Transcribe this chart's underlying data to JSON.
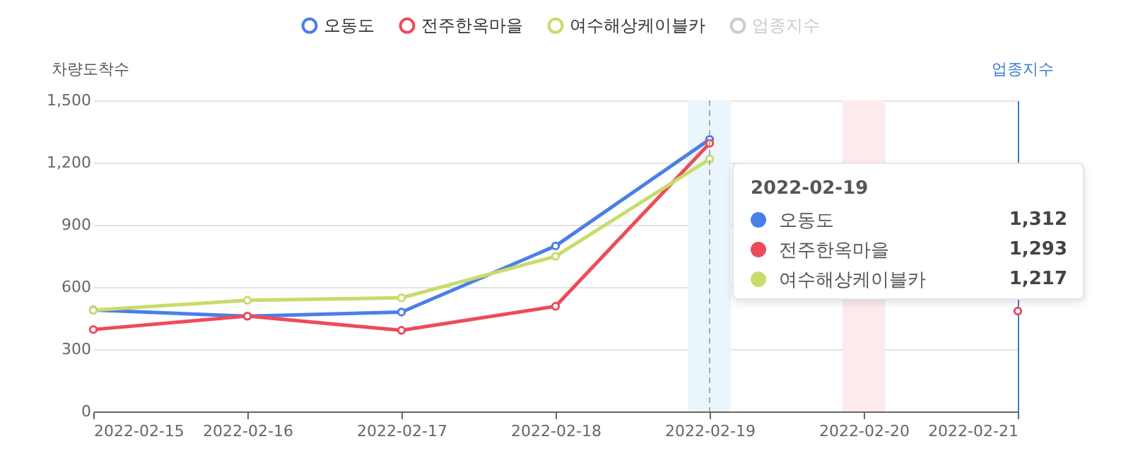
{
  "chart_data": {
    "type": "line",
    "ylabel": "차량도착수",
    "y2label": "업종지수",
    "x": [
      "2022-02-15",
      "2022-02-16",
      "2022-02-17",
      "2022-02-18",
      "2022-02-19",
      "2022-02-20",
      "2022-02-21"
    ],
    "series": [
      {
        "name": "오동도",
        "color": "#4a7fe8",
        "values": [
          489,
          459,
          479,
          798,
          1312,
          null,
          null
        ]
      },
      {
        "name": "전주한옥마을",
        "color": "#ee4b5a",
        "values": [
          395,
          460,
          391,
          507,
          1293,
          null,
          484
        ]
      },
      {
        "name": "여수해상케이블카",
        "color": "#c8dc6a",
        "values": [
          488,
          536,
          548,
          748,
          1217,
          null,
          null
        ]
      },
      {
        "name": "업종지수",
        "color": "#cccccc",
        "axis": "y2",
        "values": [
          null,
          null,
          null,
          null,
          null,
          null,
          null
        ]
      }
    ],
    "xlim": [
      "2022-02-15",
      "2022-02-21"
    ],
    "xticks": [
      "2022-02-15",
      "2022-02-16",
      "2022-02-17",
      "2022-02-18",
      "2022-02-19",
      "2022-02-20",
      "2022-02-21"
    ],
    "ylim": [
      0,
      1500
    ],
    "yticks": [
      0,
      300,
      600,
      900,
      {
        "value": 1200,
        "label": "1,200"
      },
      {
        "value": 1500,
        "label": "1,500"
      }
    ],
    "bands": [
      {
        "axis": "x",
        "from": "2022-02-18T20:40",
        "to": "2022-02-19T03:20",
        "color": "#eaf6fb"
      },
      {
        "axis": "x",
        "from": "2022-02-19T20:40",
        "to": "2022-02-20T03:20",
        "color": "#fdeaec"
      }
    ],
    "ref_lines": [
      {
        "axis": "x",
        "value": "2022-02-19",
        "color": "#aaaaaa",
        "line_style": "dashed"
      }
    ],
    "annotations": [
      "2022-02-19",
      "오동도",
      "1,312",
      "전주한옥마을",
      "1,293",
      "여수해상케이블카",
      "1,217"
    ],
    "grid": "y",
    "legend": "top",
    "marker": "circle",
    "line_style": "solid"
  }
}
